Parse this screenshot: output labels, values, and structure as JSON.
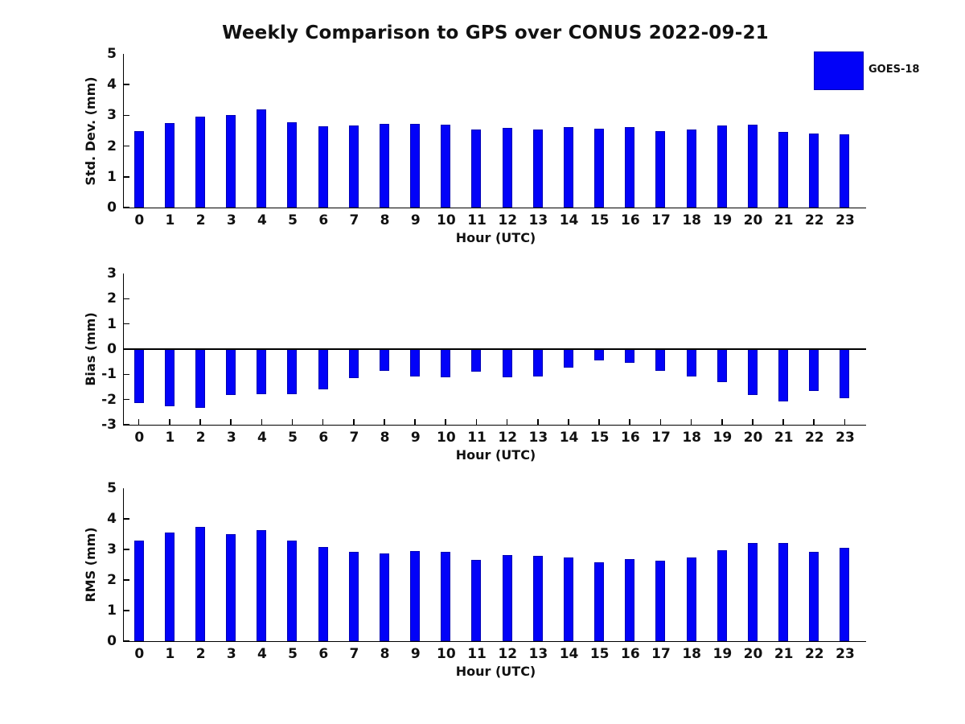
{
  "title": "Weekly Comparison to GPS over CONUS 2022-09-21",
  "legend": {
    "label": "GOES-18",
    "color": "#0202f8"
  },
  "colors": {
    "bar_fill": "#0202f8",
    "bar_edge": "#0000b4",
    "axis": "#000000",
    "text": "#111111",
    "background": "#ffffff"
  },
  "xlabel": "Hour (UTC)",
  "chart_data": [
    {
      "type": "bar",
      "title": "Weekly Comparison to GPS over CONUS 2022-09-21",
      "ylabel": "Std. Dev. (mm)",
      "xlabel": "Hour (UTC)",
      "legend": [
        "GOES-18"
      ],
      "legend_position": "upper-right-outside",
      "grid": false,
      "ylim": [
        0,
        5
      ],
      "yticks": [
        0,
        1,
        2,
        3,
        4,
        5
      ],
      "categories": [
        "0",
        "1",
        "2",
        "3",
        "4",
        "5",
        "6",
        "7",
        "8",
        "9",
        "10",
        "11",
        "12",
        "13",
        "14",
        "15",
        "16",
        "17",
        "18",
        "19",
        "20",
        "21",
        "22",
        "23"
      ],
      "values": [
        2.48,
        2.75,
        2.95,
        3.0,
        3.2,
        2.78,
        2.64,
        2.68,
        2.73,
        2.73,
        2.7,
        2.53,
        2.6,
        2.55,
        2.62,
        2.56,
        2.63,
        2.5,
        2.53,
        2.68,
        2.69,
        2.47,
        2.42,
        2.37
      ]
    },
    {
      "type": "bar",
      "title": "",
      "ylabel": "Bias (mm)",
      "xlabel": "Hour (UTC)",
      "legend": [
        "GOES-18"
      ],
      "grid": false,
      "ylim": [
        -3,
        3
      ],
      "yticks": [
        -3,
        -2,
        -1,
        0,
        1,
        2,
        3
      ],
      "categories": [
        "0",
        "1",
        "2",
        "3",
        "4",
        "5",
        "6",
        "7",
        "8",
        "9",
        "10",
        "11",
        "12",
        "13",
        "14",
        "15",
        "16",
        "17",
        "18",
        "19",
        "20",
        "21",
        "22",
        "23"
      ],
      "values": [
        -2.15,
        -2.28,
        -2.33,
        -1.81,
        -1.8,
        -1.78,
        -1.61,
        -1.15,
        -0.86,
        -1.09,
        -1.13,
        -0.9,
        -1.12,
        -1.09,
        -0.74,
        -0.45,
        -0.55,
        -0.86,
        -1.08,
        -1.3,
        -1.81,
        -2.06,
        -1.65,
        -1.96
      ]
    },
    {
      "type": "bar",
      "title": "",
      "ylabel": "RMS (mm)",
      "xlabel": "Hour (UTC)",
      "legend": [
        "GOES-18"
      ],
      "grid": false,
      "ylim": [
        0,
        5
      ],
      "yticks": [
        0,
        1,
        2,
        3,
        4,
        5
      ],
      "categories": [
        "0",
        "1",
        "2",
        "3",
        "4",
        "5",
        "6",
        "7",
        "8",
        "9",
        "10",
        "11",
        "12",
        "13",
        "14",
        "15",
        "16",
        "17",
        "18",
        "19",
        "20",
        "21",
        "22",
        "23"
      ],
      "values": [
        3.29,
        3.56,
        3.73,
        3.51,
        3.63,
        3.29,
        3.08,
        2.92,
        2.87,
        2.95,
        2.92,
        2.67,
        2.82,
        2.8,
        2.73,
        2.58,
        2.69,
        2.63,
        2.75,
        2.98,
        3.21,
        3.22,
        2.93,
        3.06
      ]
    }
  ]
}
